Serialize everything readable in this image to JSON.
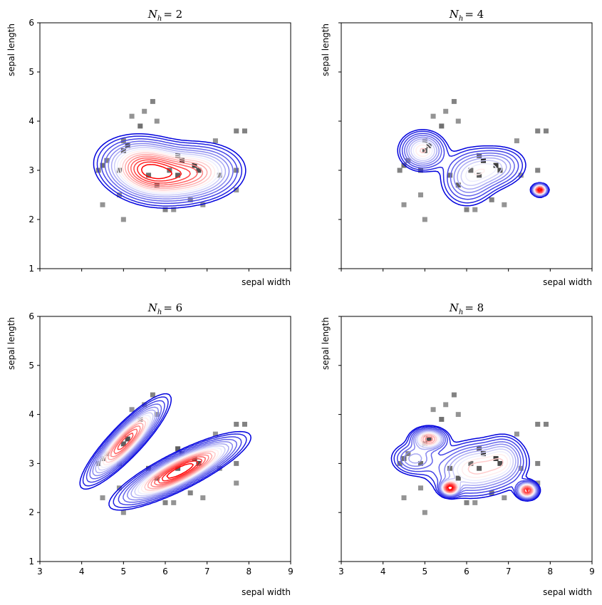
{
  "chart_data": [
    {
      "type": "heatmap",
      "title_symbol": "N",
      "title_subscript": "h",
      "title_value": "= 2",
      "xlabel": "sepal width",
      "ylabel": "sepal length",
      "xlim": [
        3,
        9
      ],
      "ylim": [
        1,
        6
      ],
      "xticks": [
        3,
        4,
        5,
        6,
        7,
        8,
        9
      ],
      "yticks": [
        1,
        2,
        3,
        4,
        5,
        6
      ],
      "show_xtick_labels": false,
      "show_ytick_labels": true,
      "histogram_cells": [
        {
          "x": 4.4,
          "y": 3.0,
          "d": 0.4
        },
        {
          "x": 4.5,
          "y": 3.1,
          "d": 0.5
        },
        {
          "x": 4.6,
          "y": 3.2,
          "d": 0.4
        },
        {
          "x": 4.9,
          "y": 3.0,
          "d": 0.5
        },
        {
          "x": 5.0,
          "y": 3.4,
          "d": 0.6
        },
        {
          "x": 5.1,
          "y": 3.5,
          "d": 0.7
        },
        {
          "x": 5.0,
          "y": 3.6,
          "d": 0.4
        },
        {
          "x": 5.4,
          "y": 3.9,
          "d": 0.5
        },
        {
          "x": 5.7,
          "y": 4.4,
          "d": 0.4
        },
        {
          "x": 5.5,
          "y": 4.2,
          "d": 0.3
        },
        {
          "x": 5.2,
          "y": 4.1,
          "d": 0.3
        },
        {
          "x": 5.8,
          "y": 4.0,
          "d": 0.3
        },
        {
          "x": 6.3,
          "y": 3.3,
          "d": 0.6
        },
        {
          "x": 6.4,
          "y": 3.2,
          "d": 0.9
        },
        {
          "x": 6.7,
          "y": 3.1,
          "d": 0.8
        },
        {
          "x": 6.1,
          "y": 3.0,
          "d": 0.5
        },
        {
          "x": 6.3,
          "y": 2.9,
          "d": 0.6
        },
        {
          "x": 6.8,
          "y": 3.0,
          "d": 0.7
        },
        {
          "x": 5.6,
          "y": 2.9,
          "d": 0.5
        },
        {
          "x": 5.8,
          "y": 2.7,
          "d": 0.6
        },
        {
          "x": 6.0,
          "y": 2.2,
          "d": 0.4
        },
        {
          "x": 6.2,
          "y": 2.2,
          "d": 0.3
        },
        {
          "x": 4.9,
          "y": 2.5,
          "d": 0.3
        },
        {
          "x": 5.0,
          "y": 2.0,
          "d": 0.3
        },
        {
          "x": 4.5,
          "y": 2.3,
          "d": 0.3
        },
        {
          "x": 7.7,
          "y": 3.8,
          "d": 0.4
        },
        {
          "x": 7.9,
          "y": 3.8,
          "d": 0.4
        },
        {
          "x": 7.2,
          "y": 3.6,
          "d": 0.3
        },
        {
          "x": 7.7,
          "y": 2.6,
          "d": 0.3
        },
        {
          "x": 7.7,
          "y": 3.0,
          "d": 0.4
        },
        {
          "x": 6.6,
          "y": 2.4,
          "d": 0.4
        },
        {
          "x": 6.9,
          "y": 2.3,
          "d": 0.3
        },
        {
          "x": 7.3,
          "y": 2.9,
          "d": 0.3
        }
      ],
      "components": [
        {
          "cx": 5.6,
          "cy": 3.0,
          "sx": 0.55,
          "sy": 0.3,
          "rot": -0.15,
          "w": 0.62
        },
        {
          "cx": 6.7,
          "cy": 2.95,
          "sx": 0.55,
          "sy": 0.28,
          "rot": 0.05,
          "w": 0.38
        }
      ]
    },
    {
      "type": "heatmap",
      "title_symbol": "N",
      "title_subscript": "h",
      "title_value": "= 4",
      "xlabel": "sepal width",
      "ylabel": "sepal length",
      "xlim": [
        3,
        9
      ],
      "ylim": [
        1,
        6
      ],
      "xticks": [
        3,
        4,
        5,
        6,
        7,
        8,
        9
      ],
      "yticks": [
        1,
        2,
        3,
        4,
        5,
        6
      ],
      "show_xtick_labels": false,
      "show_ytick_labels": false,
      "histogram_cells": [
        {
          "x": 4.4,
          "y": 3.0,
          "d": 0.4
        },
        {
          "x": 4.5,
          "y": 3.1,
          "d": 0.5
        },
        {
          "x": 4.6,
          "y": 3.2,
          "d": 0.4
        },
        {
          "x": 4.9,
          "y": 3.0,
          "d": 0.5
        },
        {
          "x": 5.0,
          "y": 3.4,
          "d": 0.6
        },
        {
          "x": 5.1,
          "y": 3.5,
          "d": 0.7
        },
        {
          "x": 5.0,
          "y": 3.6,
          "d": 0.4
        },
        {
          "x": 5.4,
          "y": 3.9,
          "d": 0.5
        },
        {
          "x": 5.7,
          "y": 4.4,
          "d": 0.4
        },
        {
          "x": 5.5,
          "y": 4.2,
          "d": 0.3
        },
        {
          "x": 5.2,
          "y": 4.1,
          "d": 0.3
        },
        {
          "x": 5.8,
          "y": 4.0,
          "d": 0.3
        },
        {
          "x": 6.3,
          "y": 3.3,
          "d": 0.6
        },
        {
          "x": 6.4,
          "y": 3.2,
          "d": 0.9
        },
        {
          "x": 6.7,
          "y": 3.1,
          "d": 0.8
        },
        {
          "x": 6.1,
          "y": 3.0,
          "d": 0.5
        },
        {
          "x": 6.3,
          "y": 2.9,
          "d": 0.6
        },
        {
          "x": 6.8,
          "y": 3.0,
          "d": 0.7
        },
        {
          "x": 5.6,
          "y": 2.9,
          "d": 0.5
        },
        {
          "x": 5.8,
          "y": 2.7,
          "d": 0.6
        },
        {
          "x": 6.0,
          "y": 2.2,
          "d": 0.4
        },
        {
          "x": 6.2,
          "y": 2.2,
          "d": 0.3
        },
        {
          "x": 4.9,
          "y": 2.5,
          "d": 0.3
        },
        {
          "x": 5.0,
          "y": 2.0,
          "d": 0.3
        },
        {
          "x": 4.5,
          "y": 2.3,
          "d": 0.3
        },
        {
          "x": 7.7,
          "y": 3.8,
          "d": 0.4
        },
        {
          "x": 7.9,
          "y": 3.8,
          "d": 0.4
        },
        {
          "x": 7.2,
          "y": 3.6,
          "d": 0.3
        },
        {
          "x": 7.7,
          "y": 2.6,
          "d": 0.3
        },
        {
          "x": 7.7,
          "y": 3.0,
          "d": 0.4
        },
        {
          "x": 6.6,
          "y": 2.4,
          "d": 0.4
        },
        {
          "x": 6.9,
          "y": 2.3,
          "d": 0.3
        },
        {
          "x": 7.3,
          "y": 2.9,
          "d": 0.3
        }
      ],
      "components": [
        {
          "cx": 4.95,
          "cy": 3.4,
          "sx": 0.28,
          "sy": 0.2,
          "rot": 0.0,
          "w": 0.3
        },
        {
          "cx": 6.05,
          "cy": 2.85,
          "sx": 0.35,
          "sy": 0.3,
          "rot": 0.2,
          "w": 0.34
        },
        {
          "cx": 6.65,
          "cy": 3.05,
          "sx": 0.4,
          "sy": 0.22,
          "rot": 0.1,
          "w": 0.3
        },
        {
          "cx": 7.75,
          "cy": 2.6,
          "sx": 0.09,
          "sy": 0.06,
          "rot": 0.0,
          "w": 0.06
        }
      ]
    },
    {
      "type": "heatmap",
      "title_symbol": "N",
      "title_subscript": "h",
      "title_value": "= 6",
      "xlabel": "sepal width",
      "ylabel": "sepal length",
      "xlim": [
        3,
        9
      ],
      "ylim": [
        1,
        6
      ],
      "xticks": [
        3,
        4,
        5,
        6,
        7,
        8,
        9
      ],
      "yticks": [
        1,
        2,
        3,
        4,
        5,
        6
      ],
      "show_xtick_labels": true,
      "show_ytick_labels": true,
      "histogram_cells": [
        {
          "x": 4.4,
          "y": 3.0,
          "d": 0.4
        },
        {
          "x": 4.5,
          "y": 3.1,
          "d": 0.5
        },
        {
          "x": 4.6,
          "y": 3.2,
          "d": 0.4
        },
        {
          "x": 4.9,
          "y": 3.0,
          "d": 0.5
        },
        {
          "x": 5.0,
          "y": 3.4,
          "d": 0.6
        },
        {
          "x": 5.1,
          "y": 3.5,
          "d": 0.7
        },
        {
          "x": 5.0,
          "y": 3.6,
          "d": 0.4
        },
        {
          "x": 5.4,
          "y": 3.9,
          "d": 0.5
        },
        {
          "x": 5.7,
          "y": 4.4,
          "d": 0.4
        },
        {
          "x": 5.5,
          "y": 4.2,
          "d": 0.3
        },
        {
          "x": 5.2,
          "y": 4.1,
          "d": 0.3
        },
        {
          "x": 5.8,
          "y": 4.0,
          "d": 0.3
        },
        {
          "x": 6.3,
          "y": 3.3,
          "d": 0.6
        },
        {
          "x": 6.4,
          "y": 3.2,
          "d": 0.9
        },
        {
          "x": 6.7,
          "y": 3.1,
          "d": 0.8
        },
        {
          "x": 6.1,
          "y": 3.0,
          "d": 0.5
        },
        {
          "x": 6.3,
          "y": 2.9,
          "d": 0.6
        },
        {
          "x": 6.8,
          "y": 3.0,
          "d": 0.7
        },
        {
          "x": 5.6,
          "y": 2.9,
          "d": 0.5
        },
        {
          "x": 5.8,
          "y": 2.7,
          "d": 0.6
        },
        {
          "x": 6.0,
          "y": 2.2,
          "d": 0.4
        },
        {
          "x": 6.2,
          "y": 2.2,
          "d": 0.3
        },
        {
          "x": 4.9,
          "y": 2.5,
          "d": 0.3
        },
        {
          "x": 5.0,
          "y": 2.0,
          "d": 0.3
        },
        {
          "x": 4.5,
          "y": 2.3,
          "d": 0.3
        },
        {
          "x": 7.7,
          "y": 3.8,
          "d": 0.4
        },
        {
          "x": 7.9,
          "y": 3.8,
          "d": 0.4
        },
        {
          "x": 7.2,
          "y": 3.6,
          "d": 0.3
        },
        {
          "x": 7.7,
          "y": 2.6,
          "d": 0.3
        },
        {
          "x": 7.7,
          "y": 3.0,
          "d": 0.4
        },
        {
          "x": 6.6,
          "y": 2.4,
          "d": 0.4
        },
        {
          "x": 6.9,
          "y": 2.3,
          "d": 0.3
        },
        {
          "x": 7.3,
          "y": 2.9,
          "d": 0.3
        }
      ],
      "components": [
        {
          "cx": 5.05,
          "cy": 3.45,
          "sx": 0.6,
          "sy": 0.15,
          "rot": 0.72,
          "w": 0.38
        },
        {
          "cx": 6.35,
          "cy": 2.85,
          "sx": 0.75,
          "sy": 0.16,
          "rot": 0.4,
          "w": 0.62
        }
      ]
    },
    {
      "type": "heatmap",
      "title_symbol": "N",
      "title_subscript": "h",
      "title_value": "= 8",
      "xlabel": "sepal width",
      "ylabel": "sepal length",
      "xlim": [
        3,
        9
      ],
      "ylim": [
        1,
        6
      ],
      "xticks": [
        3,
        4,
        5,
        6,
        7,
        8,
        9
      ],
      "yticks": [
        1,
        2,
        3,
        4,
        5,
        6
      ],
      "show_xtick_labels": true,
      "show_ytick_labels": false,
      "histogram_cells": [
        {
          "x": 4.4,
          "y": 3.0,
          "d": 0.4
        },
        {
          "x": 4.5,
          "y": 3.1,
          "d": 0.5
        },
        {
          "x": 4.6,
          "y": 3.2,
          "d": 0.4
        },
        {
          "x": 4.9,
          "y": 3.0,
          "d": 0.5
        },
        {
          "x": 5.0,
          "y": 3.4,
          "d": 0.6
        },
        {
          "x": 5.1,
          "y": 3.5,
          "d": 0.7
        },
        {
          "x": 5.0,
          "y": 3.6,
          "d": 0.4
        },
        {
          "x": 5.4,
          "y": 3.9,
          "d": 0.5
        },
        {
          "x": 5.7,
          "y": 4.4,
          "d": 0.4
        },
        {
          "x": 5.5,
          "y": 4.2,
          "d": 0.3
        },
        {
          "x": 5.2,
          "y": 4.1,
          "d": 0.3
        },
        {
          "x": 5.8,
          "y": 4.0,
          "d": 0.3
        },
        {
          "x": 6.3,
          "y": 3.3,
          "d": 0.6
        },
        {
          "x": 6.4,
          "y": 3.2,
          "d": 0.9
        },
        {
          "x": 6.7,
          "y": 3.1,
          "d": 0.8
        },
        {
          "x": 6.1,
          "y": 3.0,
          "d": 0.5
        },
        {
          "x": 6.3,
          "y": 2.9,
          "d": 0.6
        },
        {
          "x": 6.8,
          "y": 3.0,
          "d": 0.7
        },
        {
          "x": 5.6,
          "y": 2.9,
          "d": 0.5
        },
        {
          "x": 5.8,
          "y": 2.7,
          "d": 0.6
        },
        {
          "x": 6.0,
          "y": 2.2,
          "d": 0.4
        },
        {
          "x": 6.2,
          "y": 2.2,
          "d": 0.3
        },
        {
          "x": 4.9,
          "y": 2.5,
          "d": 0.3
        },
        {
          "x": 5.0,
          "y": 2.0,
          "d": 0.3
        },
        {
          "x": 4.5,
          "y": 2.3,
          "d": 0.3
        },
        {
          "x": 7.7,
          "y": 3.8,
          "d": 0.4
        },
        {
          "x": 7.9,
          "y": 3.8,
          "d": 0.4
        },
        {
          "x": 7.2,
          "y": 3.6,
          "d": 0.3
        },
        {
          "x": 7.7,
          "y": 2.6,
          "d": 0.3
        },
        {
          "x": 7.7,
          "y": 3.0,
          "d": 0.4
        },
        {
          "x": 6.6,
          "y": 2.4,
          "d": 0.4
        },
        {
          "x": 6.9,
          "y": 2.3,
          "d": 0.3
        },
        {
          "x": 7.3,
          "y": 2.9,
          "d": 0.3
        }
      ],
      "components": [
        {
          "cx": 5.1,
          "cy": 3.5,
          "sx": 0.22,
          "sy": 0.12,
          "rot": 0.0,
          "w": 0.12
        },
        {
          "cx": 4.75,
          "cy": 3.1,
          "sx": 0.3,
          "sy": 0.18,
          "rot": 0.0,
          "w": 0.1
        },
        {
          "cx": 6.25,
          "cy": 2.9,
          "sx": 0.55,
          "sy": 0.28,
          "rot": 0.1,
          "w": 0.55
        },
        {
          "cx": 5.6,
          "cy": 2.5,
          "sx": 0.12,
          "sy": 0.08,
          "rot": 0.0,
          "w": 0.06
        },
        {
          "cx": 6.9,
          "cy": 3.1,
          "sx": 0.25,
          "sy": 0.25,
          "rot": 0.0,
          "w": 0.1
        },
        {
          "cx": 7.45,
          "cy": 2.45,
          "sx": 0.13,
          "sy": 0.09,
          "rot": 0.0,
          "w": 0.07
        }
      ]
    }
  ],
  "colors": {
    "outer_contour": "#0000dd",
    "inner_contour": "#ff0000",
    "mid_contour": "#ffffff",
    "hist_dark": "#1a1a1a",
    "hist_light": "#c8c8c8",
    "axes": "#000000"
  }
}
